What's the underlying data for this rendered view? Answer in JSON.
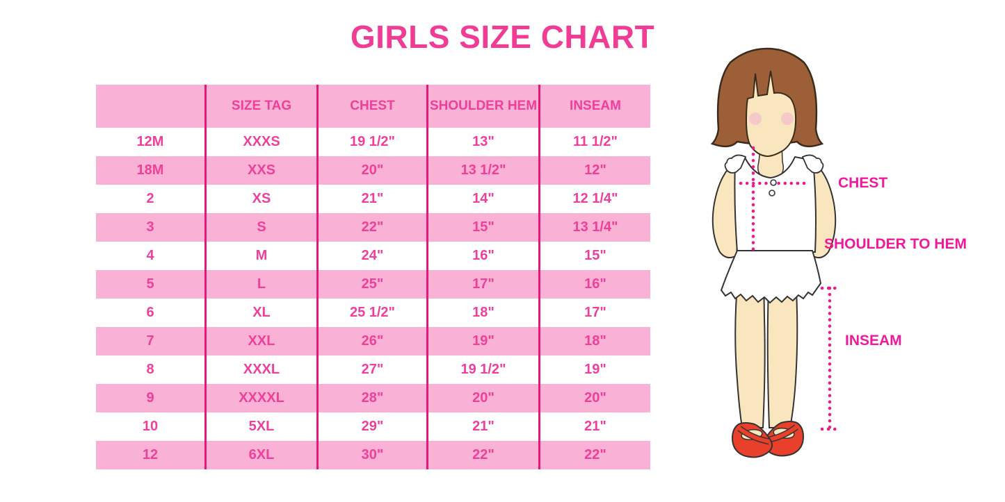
{
  "title": "GIRLS SIZE CHART",
  "table": {
    "columns": [
      "",
      "SIZE TAG",
      "CHEST",
      "SHOULDER HEM",
      "INSEAM"
    ],
    "rows": [
      [
        "12M",
        "XXXS",
        "19 1/2\"",
        "13\"",
        "11 1/2\""
      ],
      [
        "18M",
        "XXS",
        "20\"",
        "13 1/2\"",
        "12\""
      ],
      [
        "2",
        "XS",
        "21\"",
        "14\"",
        "12 1/4\""
      ],
      [
        "3",
        "S",
        "22\"",
        "15\"",
        "13 1/4\""
      ],
      [
        "4",
        "M",
        "24\"",
        "16\"",
        "15\""
      ],
      [
        "5",
        "L",
        "25\"",
        "17\"",
        "16\""
      ],
      [
        "6",
        "XL",
        "25 1/2\"",
        "18\"",
        "17\""
      ],
      [
        "7",
        "XXL",
        "26\"",
        "19\"",
        "18\""
      ],
      [
        "8",
        "XXXL",
        "27\"",
        "19 1/2\"",
        "19\""
      ],
      [
        "9",
        "XXXXL",
        "28\"",
        "20\"",
        "20\""
      ],
      [
        "10",
        "5XL",
        "29\"",
        "21\"",
        "21\""
      ],
      [
        "12",
        "6XL",
        "30\"",
        "22\"",
        "22\""
      ]
    ]
  },
  "figure": {
    "labels": {
      "chest": "CHEST",
      "shoulder_to_hem": "SHOULDER TO HEM",
      "inseam": "INSEAM"
    }
  },
  "colors": {
    "title_pink": "#F13C95",
    "table_row_pink": "#FAB1D6",
    "table_text_pink": "#EE3F9A",
    "table_line_magenta": "#E2187D",
    "measure_label_magenta": "#F0189B",
    "dotted_line_magenta": "#EC1A8D",
    "hair_brown": "#9D5F38",
    "skin_tan": "#FAE6BE",
    "blush_pink": "#F3C3CD",
    "shoe_red": "#E8402A"
  }
}
